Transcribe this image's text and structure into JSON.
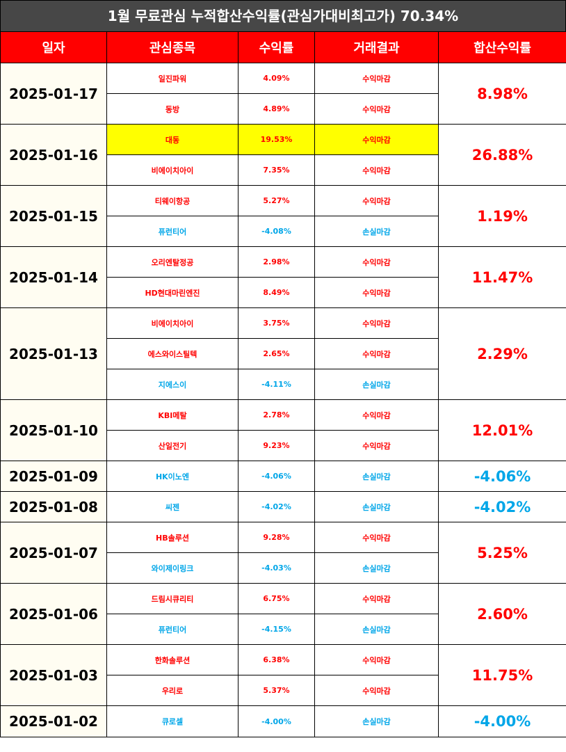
{
  "title": "1월 무료관심 누적합산수익률(관심가대비최고가) 70.34%",
  "headers": [
    "일자",
    "관심종목",
    "수익률",
    "거래결과",
    "합산수익률"
  ],
  "colors": {
    "header_bg": "#ff0000",
    "title_bg": "#474747",
    "positive": "#ff0000",
    "negative": "#00a6e8",
    "highlight": "#ffff00",
    "date_bg": "#fffdf2"
  },
  "groups": [
    {
      "date": "2025-01-17",
      "total": "8.98%",
      "sign": "pos",
      "items": [
        {
          "stock": "일진파워",
          "rate": "4.09%",
          "result": "수익마감",
          "sign": "pos"
        },
        {
          "stock": "동방",
          "rate": "4.89%",
          "result": "수익마감",
          "sign": "pos"
        }
      ]
    },
    {
      "date": "2025-01-16",
      "total": "26.88%",
      "sign": "pos",
      "items": [
        {
          "stock": "대동",
          "rate": "19.53%",
          "result": "수익마감",
          "sign": "pos",
          "highlight": true
        },
        {
          "stock": "비에이치아이",
          "rate": "7.35%",
          "result": "수익마감",
          "sign": "pos"
        }
      ]
    },
    {
      "date": "2025-01-15",
      "total": "1.19%",
      "sign": "pos",
      "items": [
        {
          "stock": "티웨이항공",
          "rate": "5.27%",
          "result": "수익마감",
          "sign": "pos"
        },
        {
          "stock": "퓨런티어",
          "rate": "-4.08%",
          "result": "손실마감",
          "sign": "neg"
        }
      ]
    },
    {
      "date": "2025-01-14",
      "total": "11.47%",
      "sign": "pos",
      "items": [
        {
          "stock": "오리엔탈정공",
          "rate": "2.98%",
          "result": "수익마감",
          "sign": "pos"
        },
        {
          "stock": "HD현대마린엔진",
          "rate": "8.49%",
          "result": "수익마감",
          "sign": "pos"
        }
      ]
    },
    {
      "date": "2025-01-13",
      "total": "2.29%",
      "sign": "pos",
      "items": [
        {
          "stock": "비에이치아이",
          "rate": "3.75%",
          "result": "수익마감",
          "sign": "pos"
        },
        {
          "stock": "에스와이스틸텍",
          "rate": "2.65%",
          "result": "수익마감",
          "sign": "pos"
        },
        {
          "stock": "지에스이",
          "rate": "-4.11%",
          "result": "손실마감",
          "sign": "neg"
        }
      ]
    },
    {
      "date": "2025-01-10",
      "total": "12.01%",
      "sign": "pos",
      "items": [
        {
          "stock": "KBI메탈",
          "rate": "2.78%",
          "result": "수익마감",
          "sign": "pos"
        },
        {
          "stock": "산일전기",
          "rate": "9.23%",
          "result": "수익마감",
          "sign": "pos"
        }
      ]
    },
    {
      "date": "2025-01-09",
      "total": "-4.06%",
      "sign": "neg",
      "items": [
        {
          "stock": "HK이노엔",
          "rate": "-4.06%",
          "result": "손실마감",
          "sign": "neg"
        }
      ]
    },
    {
      "date": "2025-01-08",
      "total": "-4.02%",
      "sign": "neg",
      "items": [
        {
          "stock": "씨젠",
          "rate": "-4.02%",
          "result": "손실마감",
          "sign": "neg"
        }
      ]
    },
    {
      "date": "2025-01-07",
      "total": "5.25%",
      "sign": "pos",
      "items": [
        {
          "stock": "HB솔루션",
          "rate": "9.28%",
          "result": "수익마감",
          "sign": "pos"
        },
        {
          "stock": "와이제이링크",
          "rate": "-4.03%",
          "result": "손실마감",
          "sign": "neg"
        }
      ]
    },
    {
      "date": "2025-01-06",
      "total": "2.60%",
      "sign": "pos",
      "items": [
        {
          "stock": "드림시큐리티",
          "rate": "6.75%",
          "result": "수익마감",
          "sign": "pos"
        },
        {
          "stock": "퓨런티어",
          "rate": "-4.15%",
          "result": "손실마감",
          "sign": "neg"
        }
      ]
    },
    {
      "date": "2025-01-03",
      "total": "11.75%",
      "sign": "pos",
      "items": [
        {
          "stock": "한화솔루션",
          "rate": "6.38%",
          "result": "수익마감",
          "sign": "pos"
        },
        {
          "stock": "우리로",
          "rate": "5.37%",
          "result": "수익마감",
          "sign": "pos"
        }
      ]
    },
    {
      "date": "2025-01-02",
      "total": "-4.00%",
      "sign": "neg",
      "items": [
        {
          "stock": "큐로셀",
          "rate": "-4.00%",
          "result": "손실마감",
          "sign": "neg"
        }
      ]
    }
  ]
}
